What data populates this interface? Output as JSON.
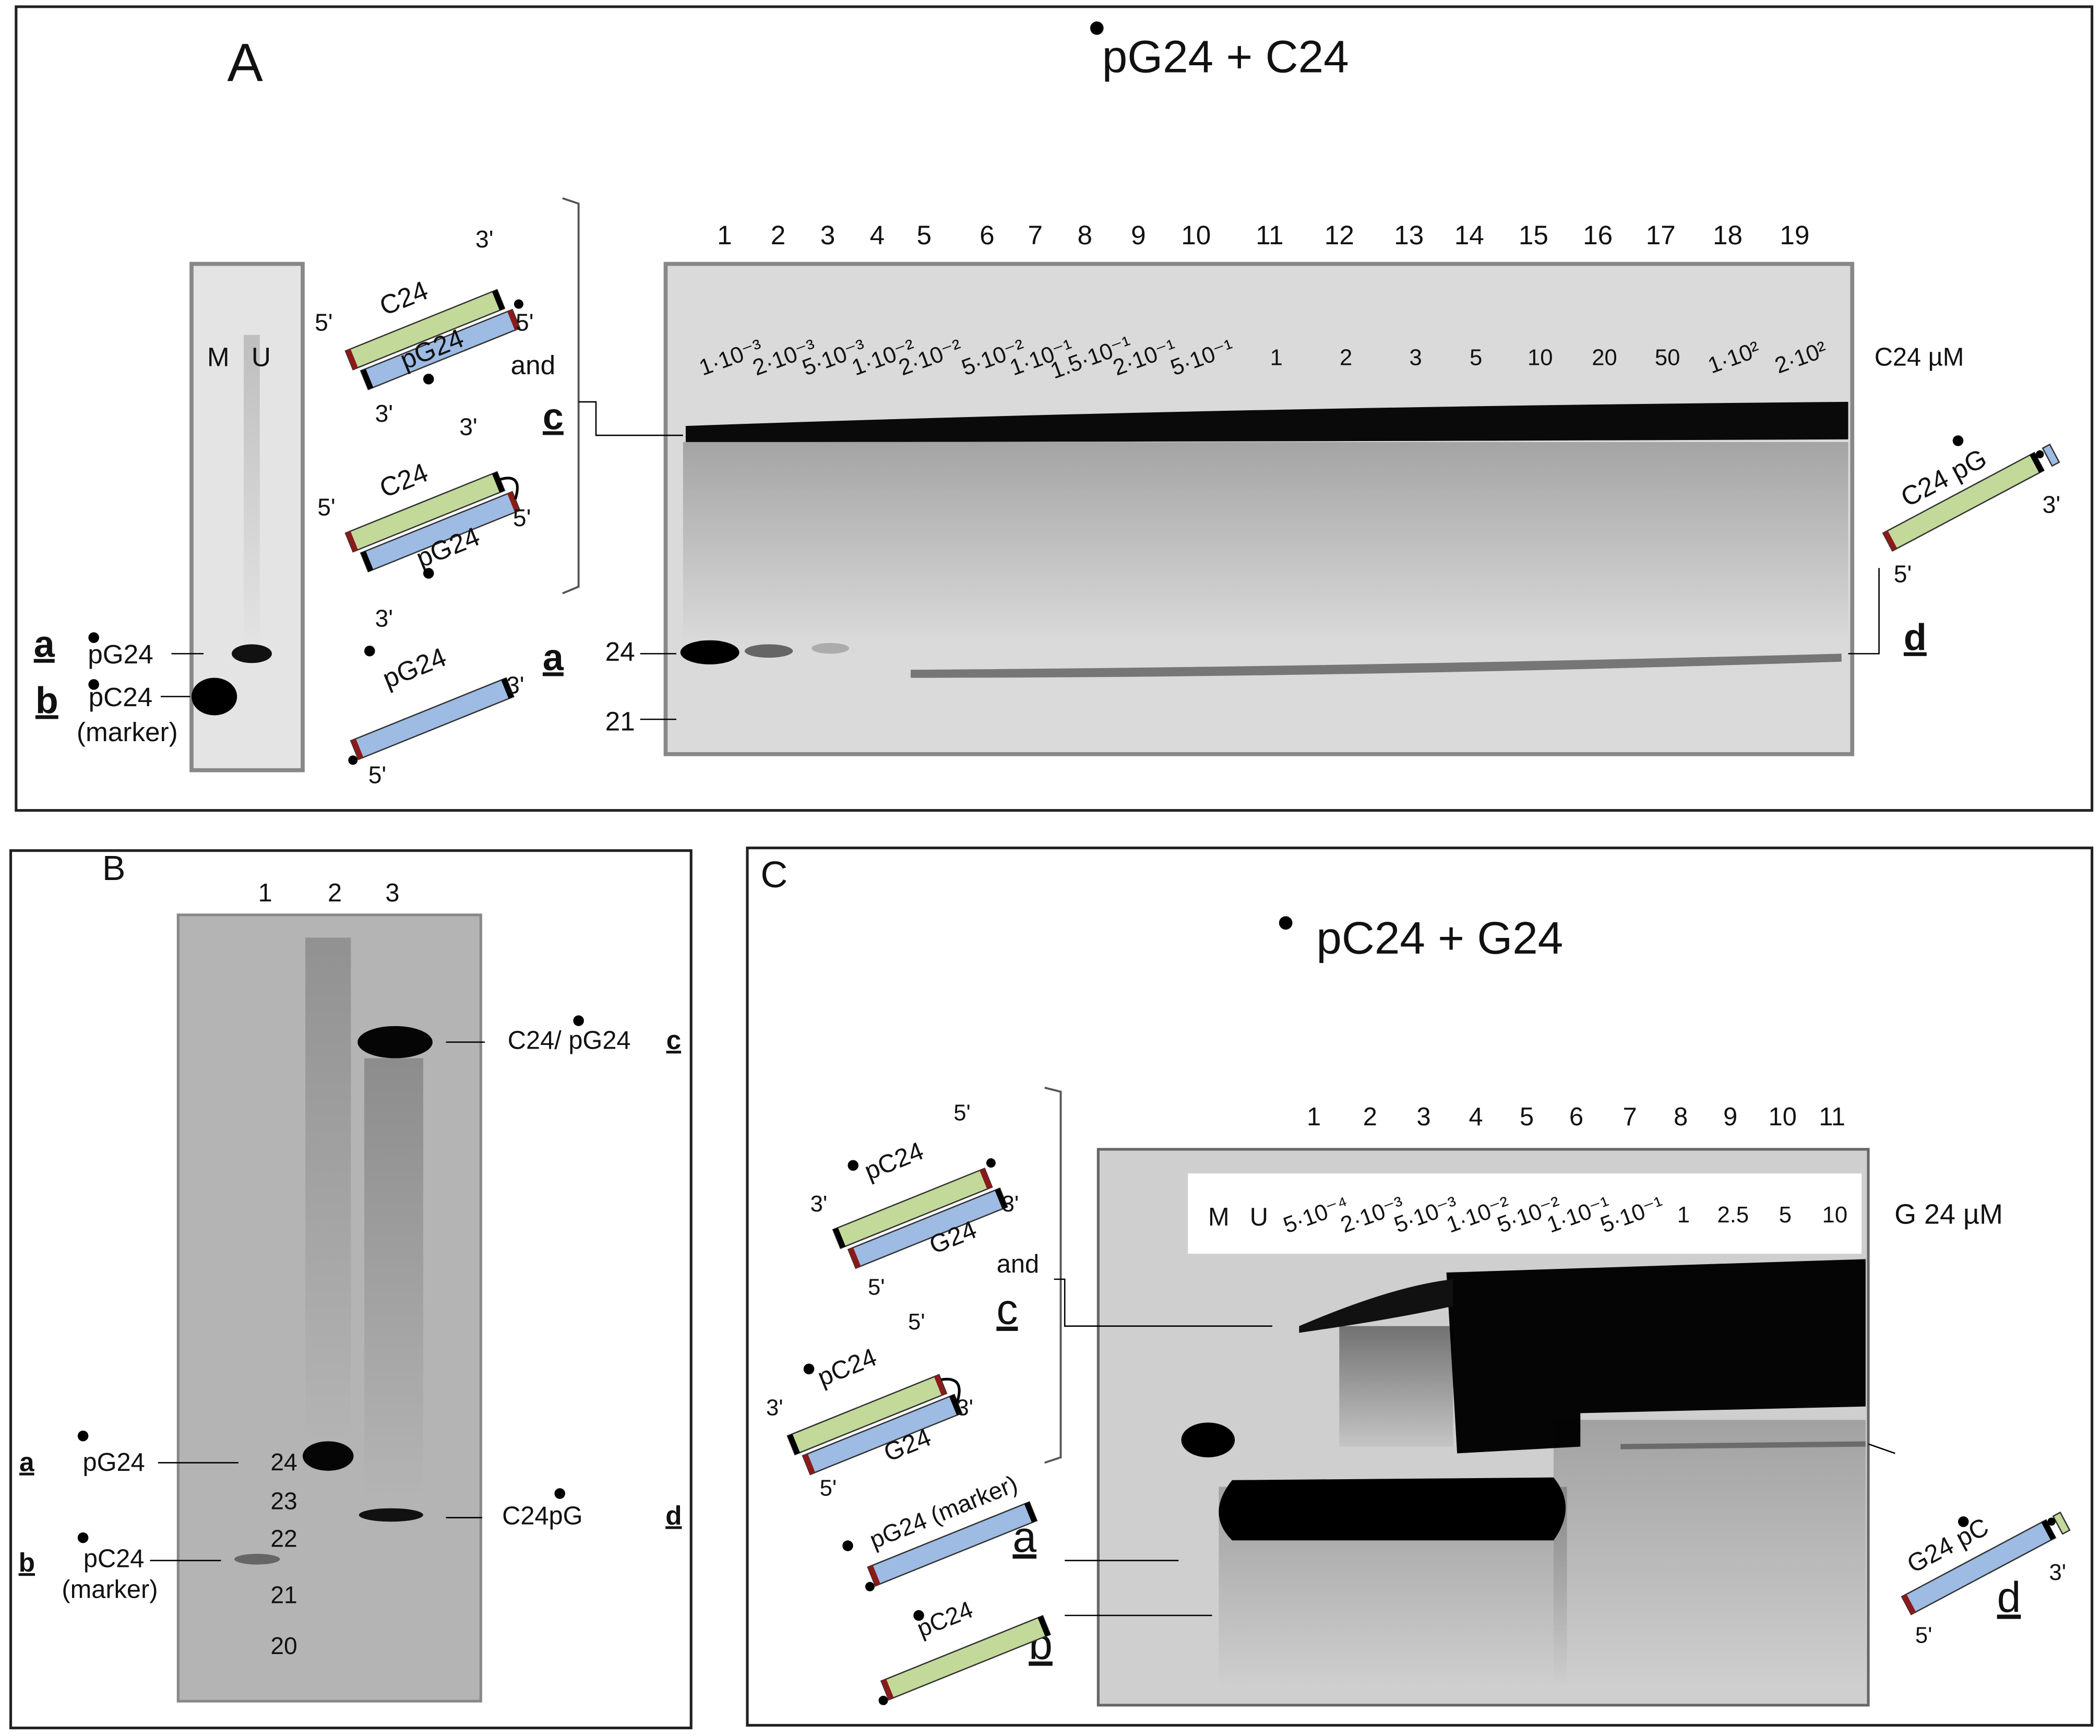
{
  "panel_a": {
    "label": "A",
    "title": "pG24 + C24",
    "lanes": [
      "1",
      "2",
      "3",
      "4",
      "5",
      "6",
      "7",
      "8",
      "9",
      "10",
      "11",
      "12",
      "13",
      "14",
      "15",
      "16",
      "17",
      "18",
      "19"
    ],
    "concentrations": [
      "1·10⁻³",
      "2·10⁻³",
      "5·10⁻³",
      "1·10⁻²",
      "2·10⁻²",
      "5·10⁻²",
      "1·10⁻¹",
      "1.5·10⁻¹",
      "2·10⁻¹",
      "5·10⁻¹",
      "1",
      "2",
      "3",
      "5",
      "10",
      "20",
      "50",
      "1·10²",
      "2·10²"
    ],
    "unit": "C24 µM",
    "marker_gel": {
      "lanes": [
        "M",
        "U"
      ],
      "a": "a",
      "a_text": "pG24",
      "b": "b",
      "b_text": "pC24",
      "marker": "(marker)"
    },
    "gel_labels": {
      "c": "c",
      "a": "a",
      "d": "d",
      "sizes": [
        "24",
        "21"
      ]
    },
    "duplex_1": {
      "top": "C24",
      "bottom": "pG24",
      "and": "and",
      "ends": [
        "3'",
        "5'",
        "5'",
        "3'"
      ]
    },
    "duplex_2": {
      "top": "C24",
      "bottom": "pG24",
      "ends": [
        "3'",
        "5'",
        "5'",
        "3'"
      ]
    },
    "single": {
      "text": "pG24",
      "ends": [
        "3'",
        "5'"
      ]
    },
    "product": {
      "text": "C24 pG",
      "ends": [
        "3'",
        "5'"
      ]
    }
  },
  "panel_b": {
    "label": "B",
    "lanes": [
      "1",
      "2",
      "3"
    ],
    "sizes": [
      "24",
      "23",
      "22",
      "21",
      "20"
    ],
    "a": "a",
    "a_text": "pG24",
    "b": "b",
    "b_text": "pC24",
    "marker": "(marker)",
    "c_text": "C24/ pG24",
    "c": "c",
    "d_text": "C24pG",
    "d": "d"
  },
  "panel_c": {
    "label": "C",
    "title": "pC24 + G24",
    "lanes": [
      "1",
      "2",
      "3",
      "4",
      "5",
      "6",
      "7",
      "8",
      "9",
      "10",
      "11"
    ],
    "marker_lanes": [
      "M",
      "U"
    ],
    "concentrations": [
      "5·10⁻⁴",
      "2·10⁻³",
      "5·10⁻³",
      "1·10⁻²",
      "5·10⁻²",
      "1·10⁻¹",
      "5·10⁻¹",
      "1",
      "2.5",
      "5",
      "10"
    ],
    "unit": "G 24 µM",
    "labels": {
      "a": "a",
      "b": "b",
      "c": "c",
      "d": "d",
      "and": "and"
    },
    "duplex_1": {
      "top": "pC24",
      "bottom": "G24",
      "ends": [
        "5'",
        "3'",
        "3'",
        "5'"
      ]
    },
    "duplex_2": {
      "top": "pC24",
      "bottom": "G24",
      "ends": [
        "5'",
        "3'",
        "3'",
        "5'"
      ]
    },
    "single_1": {
      "text": "pG24 (marker)"
    },
    "single_2": {
      "text": "pC24"
    },
    "product": {
      "text": "G24 pC",
      "ends": [
        "3'",
        "5'"
      ]
    }
  }
}
